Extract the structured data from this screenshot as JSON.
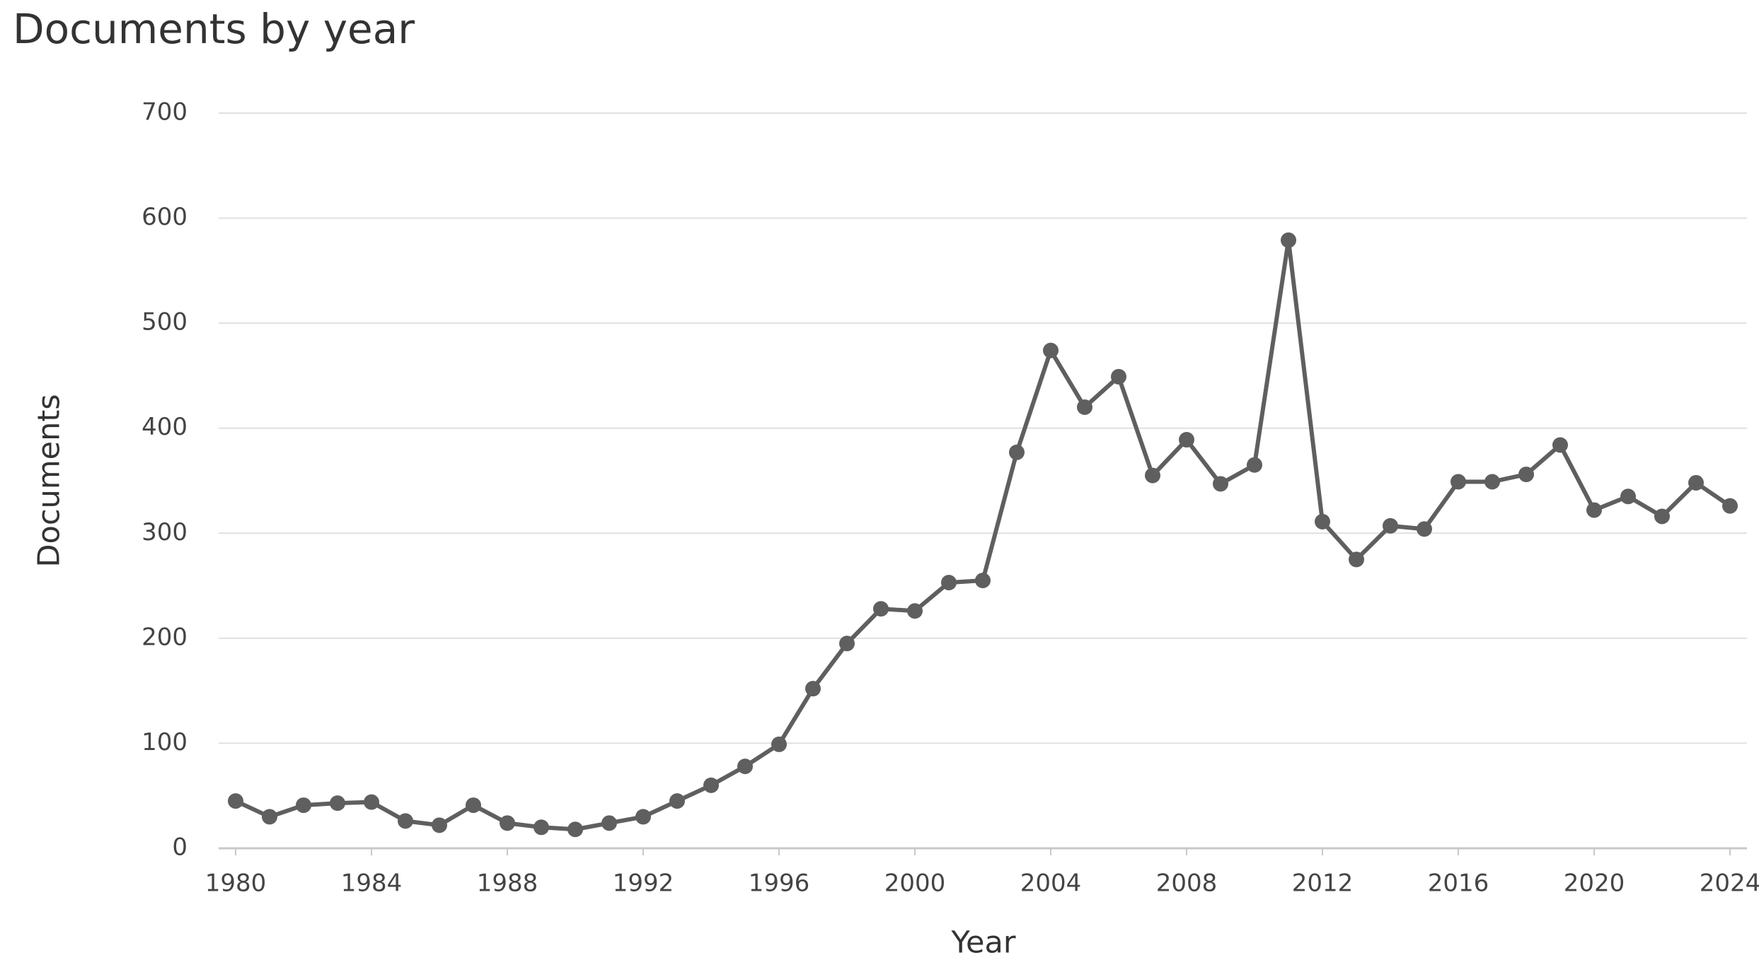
{
  "chart_data": {
    "type": "line",
    "title": "Documents by year",
    "xlabel": "Year",
    "ylabel": "Documents",
    "x": [
      1980,
      1981,
      1982,
      1983,
      1984,
      1985,
      1986,
      1987,
      1988,
      1989,
      1990,
      1991,
      1992,
      1993,
      1994,
      1995,
      1996,
      1997,
      1998,
      1999,
      2000,
      2001,
      2002,
      2003,
      2004,
      2005,
      2006,
      2007,
      2008,
      2009,
      2010,
      2011,
      2012,
      2013,
      2014,
      2015,
      2016,
      2017,
      2018,
      2019,
      2020,
      2021,
      2022,
      2023,
      2024
    ],
    "series": [
      {
        "name": "Documents",
        "color": "#5f5f5f",
        "values": [
          45,
          30,
          41,
          43,
          44,
          26,
          22,
          41,
          24,
          20,
          18,
          24,
          30,
          45,
          60,
          78,
          99,
          152,
          195,
          228,
          226,
          253,
          255,
          377,
          474,
          420,
          449,
          355,
          389,
          347,
          365,
          579,
          311,
          275,
          307,
          304,
          349,
          349,
          356,
          384,
          322,
          335,
          316,
          348,
          326
        ]
      }
    ],
    "xlim": [
      1979.5,
      2024.5
    ],
    "xticks": [
      1980,
      1984,
      1988,
      1992,
      1996,
      2000,
      2004,
      2008,
      2012,
      2016,
      2020,
      2024
    ],
    "ylim": [
      0,
      700
    ],
    "yticks": [
      0,
      100,
      200,
      300,
      400,
      500,
      600,
      700
    ],
    "grid": true
  }
}
